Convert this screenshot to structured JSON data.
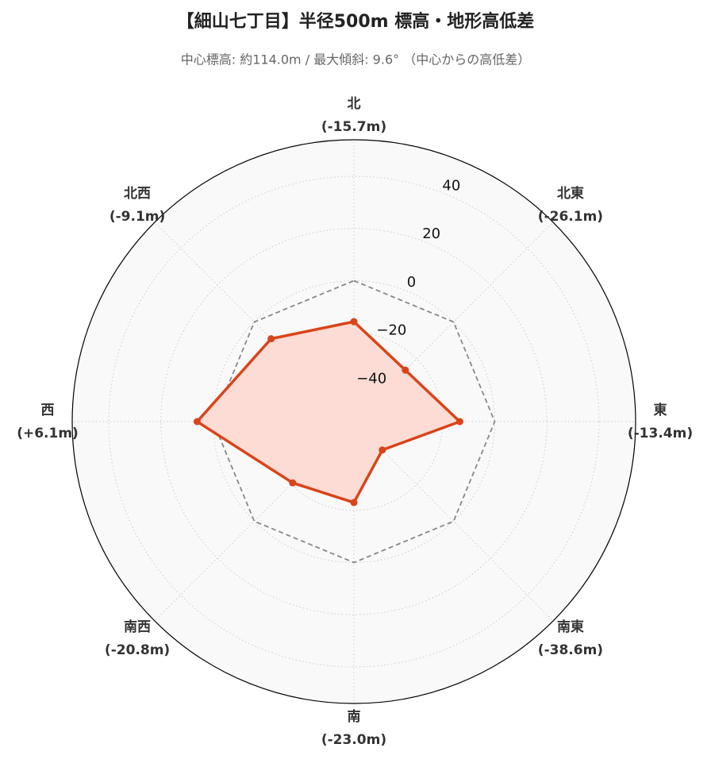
{
  "chart_data": {
    "type": "radar",
    "title": "【細山七丁目】半径500m 標高・地形高低差",
    "subtitle": "中心標高: 約114.0m / 最大傾斜: 9.6°  （中心からの高低差）",
    "categories": [
      "北",
      "北東",
      "東",
      "南東",
      "南",
      "南西",
      "西",
      "北西"
    ],
    "values": [
      -15.7,
      -26.1,
      -13.4,
      -38.6,
      -23.0,
      -20.8,
      6.1,
      -9.1
    ],
    "value_labels": [
      "(-15.7m)",
      "(-26.1m)",
      "(-13.4m)",
      "(-38.6m)",
      "(-23.0m)",
      "(-20.8m)",
      "(+6.1m)",
      "(-9.1m)"
    ],
    "color": "#d9441a",
    "fill_color": "#fcdcd4",
    "reference_value": 0,
    "rlim": [
      -54,
      54
    ],
    "rticks": [
      {
        "value": -40,
        "label": "−40"
      },
      {
        "value": -20,
        "label": "−20"
      },
      0,
      20,
      40
    ],
    "grid": true
  }
}
